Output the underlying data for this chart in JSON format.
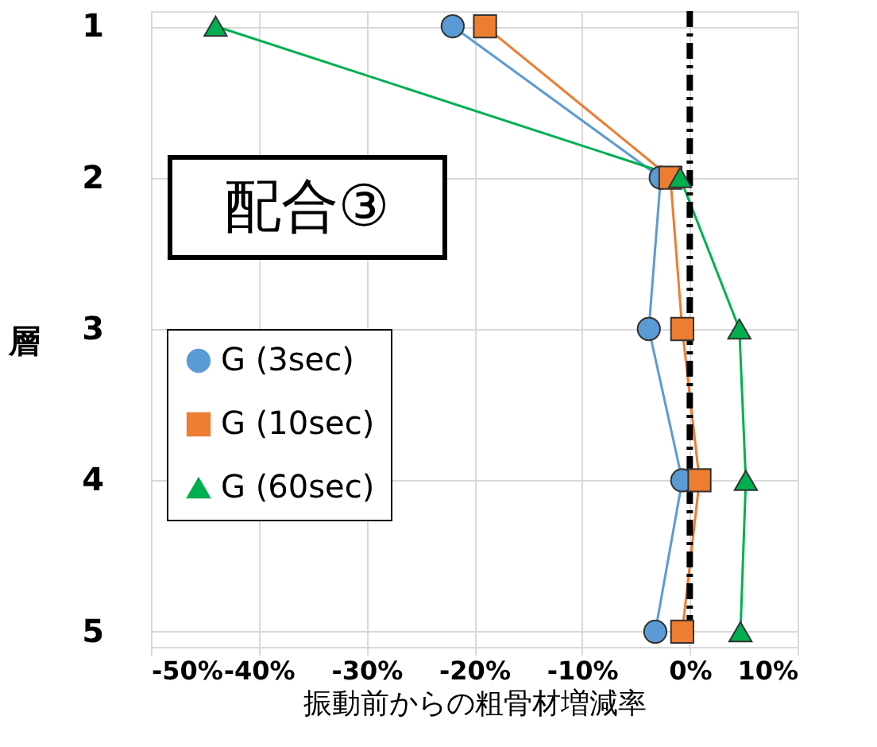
{
  "chart_data": {
    "type": "line",
    "orientation": "horizontal",
    "xlabel": "振動前からの粗骨材増減率",
    "ylabel": "層",
    "categories": [
      "1",
      "2",
      "3",
      "4",
      "5"
    ],
    "series": [
      {
        "name": "G (3sec)",
        "color": "#5b9bd5",
        "marker": "circle",
        "values": [
          -22,
          -2.7,
          -3.8,
          -0.7,
          -3.2
        ]
      },
      {
        "name": "G (10sec)",
        "color": "#ed7d31",
        "marker": "square",
        "values": [
          -19,
          -1.8,
          -0.7,
          0.9,
          -0.7
        ]
      },
      {
        "name": "G (60sec)",
        "color": "#00b050",
        "marker": "triangle",
        "values": [
          -44,
          -0.9,
          4.6,
          5.2,
          4.7
        ]
      }
    ],
    "xlim": [
      -50,
      10
    ],
    "xticks": [
      {
        "value": -50,
        "label": "-50%"
      },
      {
        "value": -40,
        "label": "-40%"
      },
      {
        "value": -30,
        "label": "-30%"
      },
      {
        "value": -20,
        "label": "-20%"
      },
      {
        "value": -10,
        "label": "-10%"
      },
      {
        "value": 0,
        "label": "0%"
      },
      {
        "value": 10,
        "label": "10%"
      }
    ],
    "ref_lines": [
      {
        "axis": "x",
        "value": 0,
        "color": "#000000",
        "line_style": "dashdot"
      }
    ],
    "annotations": [
      "配合③"
    ],
    "grid": true,
    "legend": "left"
  }
}
